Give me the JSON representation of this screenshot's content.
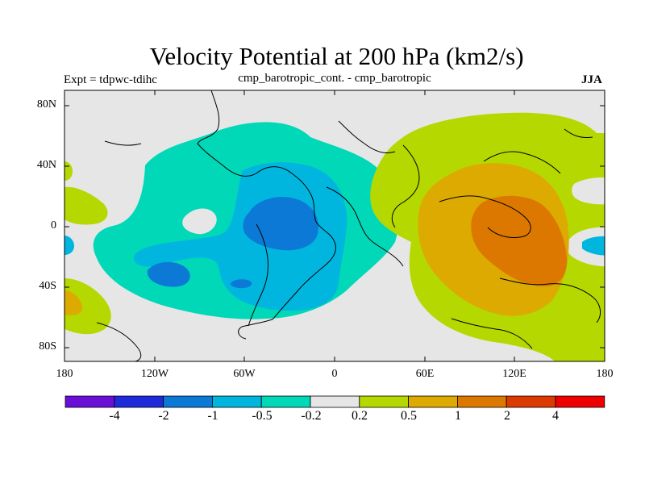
{
  "title": "Velocity Potential at 200 hPa (km2/s)",
  "subtitle": "cmp_barotropic_cont. - cmp_barotropic",
  "expt": "Expt = tdpwc-tdihc",
  "season": "JJA",
  "lat_labels": [
    "80N",
    "40N",
    "0",
    "40S",
    "80S"
  ],
  "lon_labels": [
    "180",
    "120W",
    "60W",
    "0",
    "60E",
    "120E",
    "180"
  ],
  "colorbar": {
    "labels": [
      "-4",
      "-2",
      "-1",
      "-0.5",
      "-0.2",
      "0.2",
      "0.5",
      "1",
      "2",
      "4"
    ],
    "colors": [
      "#6a0fd8",
      "#1f2bdb",
      "#0d79d6",
      "#00b6df",
      "#00d8b8",
      "#e6e6e6",
      "#b5d800",
      "#dcaa00",
      "#dc7800",
      "#dc3a00",
      "#ee0000"
    ]
  },
  "map_colors": {
    "neutral": "#e6e6e6",
    "neg_0_2": "#00d8b8",
    "neg_0_5": "#00b6df",
    "neg_1": "#0d79d6",
    "pos_0_2": "#b5d800",
    "pos_0_5": "#dcaa00",
    "pos_1": "#dc7800"
  }
}
